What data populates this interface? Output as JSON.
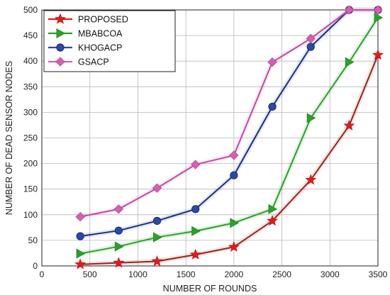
{
  "chart_data": {
    "type": "line",
    "xlabel": "NUMBER OF ROUNDS",
    "ylabel": "NUMBER OF DEAD SENSOR NODES",
    "xlim": [
      0,
      3500
    ],
    "ylim": [
      0,
      500
    ],
    "xticks": [
      0,
      500,
      1000,
      1500,
      2000,
      2500,
      3000,
      3500
    ],
    "yticks": [
      0,
      50,
      100,
      150,
      200,
      250,
      300,
      350,
      400,
      450,
      500
    ],
    "grid": true,
    "legend_position": "top-left",
    "x": [
      400,
      800,
      1200,
      1600,
      2000,
      2400,
      2800,
      3200,
      3500
    ],
    "series": [
      {
        "name": "PROPOSED",
        "color": "#e41a1c",
        "line_color": "#8b2a1e",
        "marker": "star",
        "values": [
          3,
          6,
          9,
          22,
          37,
          88,
          168,
          274,
          412
        ]
      },
      {
        "name": "MBABCOA",
        "color": "#2ca02c",
        "line_color": "#2ca02c",
        "marker": "triangle-right",
        "values": [
          24,
          38,
          56,
          68,
          84,
          111,
          289,
          398,
          485
        ]
      },
      {
        "name": "KHOGACP",
        "color": "#2a4aa8",
        "line_color": "#1c2f80",
        "marker": "circle",
        "values": [
          58,
          69,
          88,
          111,
          177,
          311,
          428,
          500,
          500
        ]
      },
      {
        "name": "GSACP",
        "color": "#d55fb2",
        "line_color": "#c04a9f",
        "marker": "diamond",
        "values": [
          96,
          111,
          152,
          198,
          216,
          398,
          444,
          500,
          500
        ]
      }
    ]
  }
}
